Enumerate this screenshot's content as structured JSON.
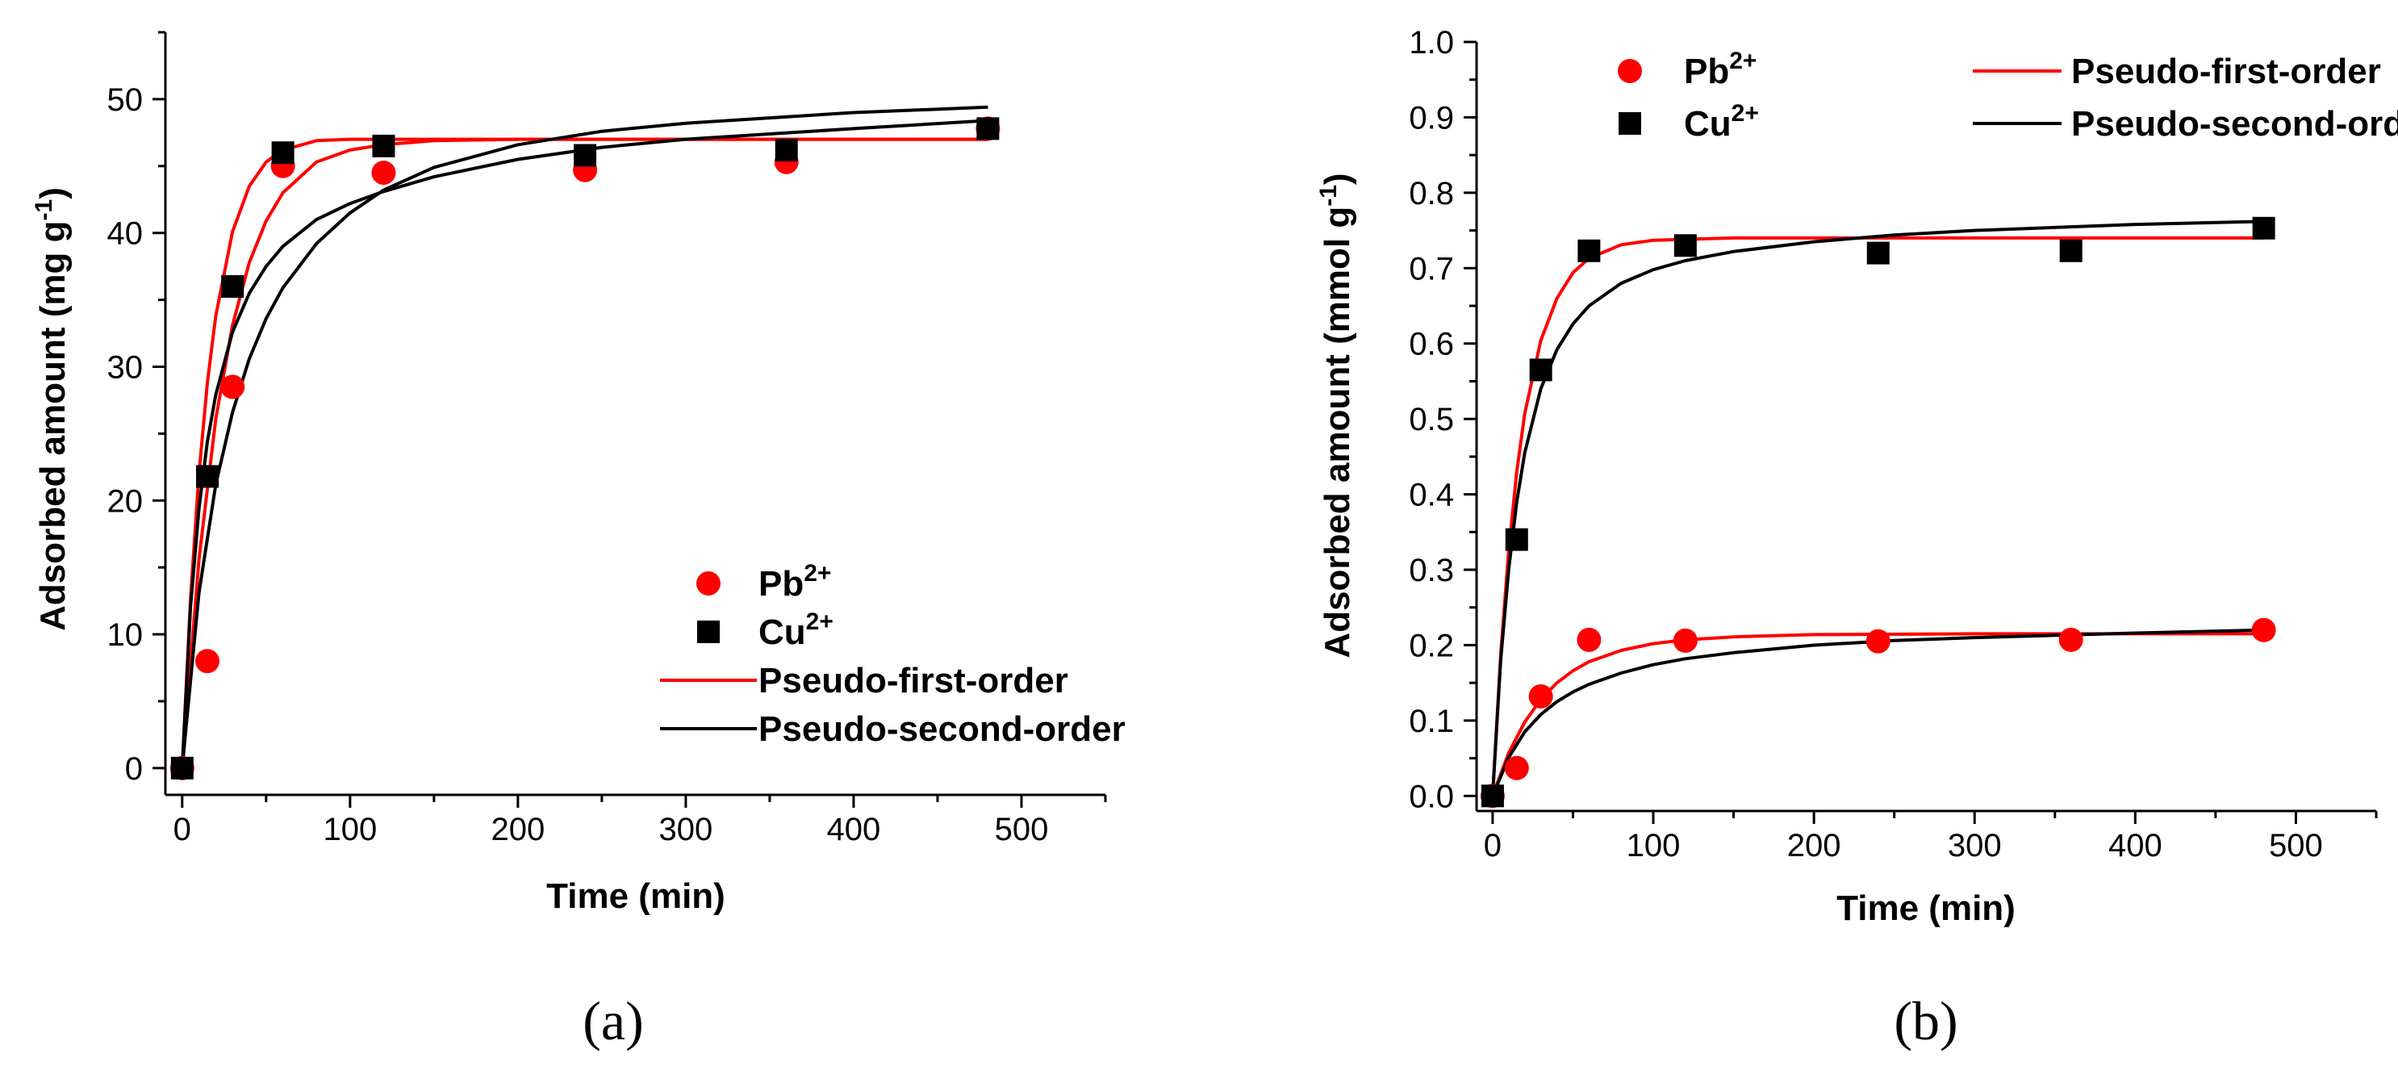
{
  "chart_data": [
    {
      "type": "scatter",
      "panel_label": "(a)",
      "xlabel": "Time (min)",
      "ylabel": {
        "main": "Adsorbed amount (mg g",
        "sup": "-1",
        "close": ")"
      },
      "xlim": [
        -10,
        550
      ],
      "ylim": [
        -2,
        55
      ],
      "xticks": [
        0,
        100,
        200,
        300,
        400,
        500
      ],
      "yticks": [
        0,
        10,
        20,
        30,
        40,
        50
      ],
      "legend_position": "bottom-right",
      "legend": [
        {
          "kind": "marker",
          "symbol": "circle",
          "color": "#ff0000",
          "label": "Pb",
          "sup": "2+"
        },
        {
          "kind": "marker",
          "symbol": "square",
          "color": "#000000",
          "label": "Cu",
          "sup": "2+"
        },
        {
          "kind": "line",
          "color": "#ff0000",
          "label": "Pseudo-first-order",
          "sup": ""
        },
        {
          "kind": "line",
          "color": "#000000",
          "label": "Pseudo-second-order",
          "sup": ""
        }
      ],
      "series": [
        {
          "name": "Pb2+",
          "kind": "points",
          "symbol": "circle",
          "color": "#ff0000",
          "x": [
            0,
            15,
            30,
            60,
            120,
            240,
            360,
            480
          ],
          "y": [
            0,
            8,
            28.5,
            45,
            44.5,
            44.7,
            45.3,
            47.8
          ]
        },
        {
          "name": "Cu2+",
          "kind": "points",
          "symbol": "square",
          "color": "#000000",
          "x": [
            0,
            15,
            30,
            60,
            120,
            240,
            360,
            480
          ],
          "y": [
            0,
            21.8,
            36,
            46,
            46.5,
            45.8,
            46.2,
            47.8
          ]
        },
        {
          "name": "Pb2+ pseudo-first-order",
          "kind": "line",
          "color": "#ff0000",
          "x": [
            0,
            10,
            20,
            30,
            40,
            50,
            60,
            80,
            100,
            120,
            150,
            200,
            300,
            400,
            480
          ],
          "y": [
            0,
            15.6,
            26.1,
            33.1,
            37.8,
            40.9,
            43.0,
            45.3,
            46.2,
            46.6,
            46.9,
            47,
            47,
            47,
            47
          ]
        },
        {
          "name": "Cu2+ pseudo-first-order",
          "kind": "line",
          "color": "#ff0000",
          "x": [
            0,
            5,
            10,
            15,
            20,
            30,
            40,
            50,
            60,
            80,
            100,
            120,
            150,
            200,
            480
          ],
          "y": [
            0,
            12.7,
            22,
            28.8,
            33.8,
            40.1,
            43.5,
            45.3,
            46.2,
            46.9,
            47,
            47,
            47,
            47,
            47
          ]
        },
        {
          "name": "Pb2+ pseudo-second-order",
          "kind": "line",
          "color": "#000000",
          "x": [
            0,
            10,
            20,
            30,
            40,
            50,
            60,
            80,
            100,
            120,
            150,
            200,
            250,
            300,
            350,
            400,
            480
          ],
          "y": [
            0,
            13.1,
            21.2,
            26.6,
            30.6,
            33.6,
            35.9,
            39.2,
            41.5,
            43.2,
            44.9,
            46.6,
            47.6,
            48.2,
            48.6,
            49.0,
            49.4
          ]
        },
        {
          "name": "Cu2+ pseudo-second-order",
          "kind": "line",
          "color": "#000000",
          "x": [
            0,
            5,
            10,
            15,
            20,
            30,
            40,
            50,
            60,
            80,
            100,
            120,
            150,
            200,
            250,
            300,
            400,
            480
          ],
          "y": [
            0,
            12.1,
            19.4,
            24.4,
            27.9,
            32.6,
            35.5,
            37.5,
            39.0,
            41.0,
            42.2,
            43.1,
            44.2,
            45.5,
            46.4,
            47.0,
            47.8,
            48.4
          ]
        }
      ]
    },
    {
      "type": "scatter",
      "panel_label": "(b)",
      "xlabel": "Time (min)",
      "ylabel": {
        "main": "Adsorbed amount (mmol g",
        "sup": "-1",
        "close": ")"
      },
      "xlim": [
        -10,
        550
      ],
      "ylim": [
        -0.02,
        1.0
      ],
      "xticks": [
        0,
        100,
        200,
        300,
        400,
        500
      ],
      "yticks": [
        0.0,
        0.1,
        0.2,
        0.3,
        0.4,
        0.5,
        0.6,
        0.7,
        0.8,
        0.9,
        1.0
      ],
      "ytick_decimals": 1,
      "legend_position": "top",
      "legend": [
        {
          "kind": "marker",
          "symbol": "circle",
          "color": "#ff0000",
          "label": "Pb",
          "sup": "2+"
        },
        {
          "kind": "line",
          "color": "#ff0000",
          "label": "Pseudo-first-order",
          "sup": ""
        },
        {
          "kind": "marker",
          "symbol": "square",
          "color": "#000000",
          "label": "Cu",
          "sup": "2+"
        },
        {
          "kind": "line",
          "color": "#000000",
          "label": "Pseudo-second-order",
          "sup": ""
        }
      ],
      "series": [
        {
          "name": "Pb2+",
          "kind": "points",
          "symbol": "circle",
          "color": "#ff0000",
          "x": [
            0,
            15,
            30,
            60,
            120,
            240,
            360,
            480
          ],
          "y": [
            0,
            0.037,
            0.132,
            0.207,
            0.206,
            0.205,
            0.207,
            0.22
          ]
        },
        {
          "name": "Cu2+",
          "kind": "points",
          "symbol": "square",
          "color": "#000000",
          "x": [
            0,
            15,
            30,
            60,
            120,
            240,
            360,
            480
          ],
          "y": [
            0,
            0.34,
            0.565,
            0.723,
            0.73,
            0.72,
            0.723,
            0.753
          ]
        },
        {
          "name": "Pb2+ pseudo-first-order",
          "kind": "line",
          "color": "#ff0000",
          "x": [
            0,
            10,
            20,
            30,
            40,
            50,
            60,
            80,
            100,
            120,
            150,
            200,
            300,
            480
          ],
          "y": [
            0,
            0.057,
            0.098,
            0.128,
            0.15,
            0.166,
            0.178,
            0.193,
            0.202,
            0.207,
            0.211,
            0.214,
            0.215,
            0.215
          ]
        },
        {
          "name": "Cu2+ pseudo-first-order",
          "kind": "line",
          "color": "#ff0000",
          "x": [
            0,
            5,
            10,
            15,
            20,
            30,
            40,
            50,
            60,
            80,
            100,
            150,
            200,
            480
          ],
          "y": [
            0,
            0.187,
            0.325,
            0.43,
            0.507,
            0.604,
            0.66,
            0.694,
            0.713,
            0.731,
            0.737,
            0.74,
            0.74,
            0.74
          ]
        },
        {
          "name": "Pb2+ pseudo-second-order",
          "kind": "line",
          "color": "#000000",
          "x": [
            0,
            10,
            20,
            30,
            40,
            50,
            60,
            80,
            100,
            120,
            150,
            200,
            250,
            300,
            400,
            480
          ],
          "y": [
            0,
            0.051,
            0.085,
            0.108,
            0.125,
            0.138,
            0.148,
            0.163,
            0.174,
            0.182,
            0.19,
            0.2,
            0.206,
            0.21,
            0.216,
            0.22
          ]
        },
        {
          "name": "Cu2+ pseudo-second-order",
          "kind": "line",
          "color": "#000000",
          "x": [
            0,
            5,
            10,
            15,
            20,
            30,
            40,
            50,
            60,
            80,
            100,
            120,
            150,
            200,
            250,
            300,
            400,
            480
          ],
          "y": [
            0,
            0.18,
            0.3,
            0.39,
            0.455,
            0.54,
            0.592,
            0.626,
            0.65,
            0.68,
            0.698,
            0.71,
            0.722,
            0.735,
            0.744,
            0.75,
            0.758,
            0.762
          ]
        }
      ]
    }
  ]
}
